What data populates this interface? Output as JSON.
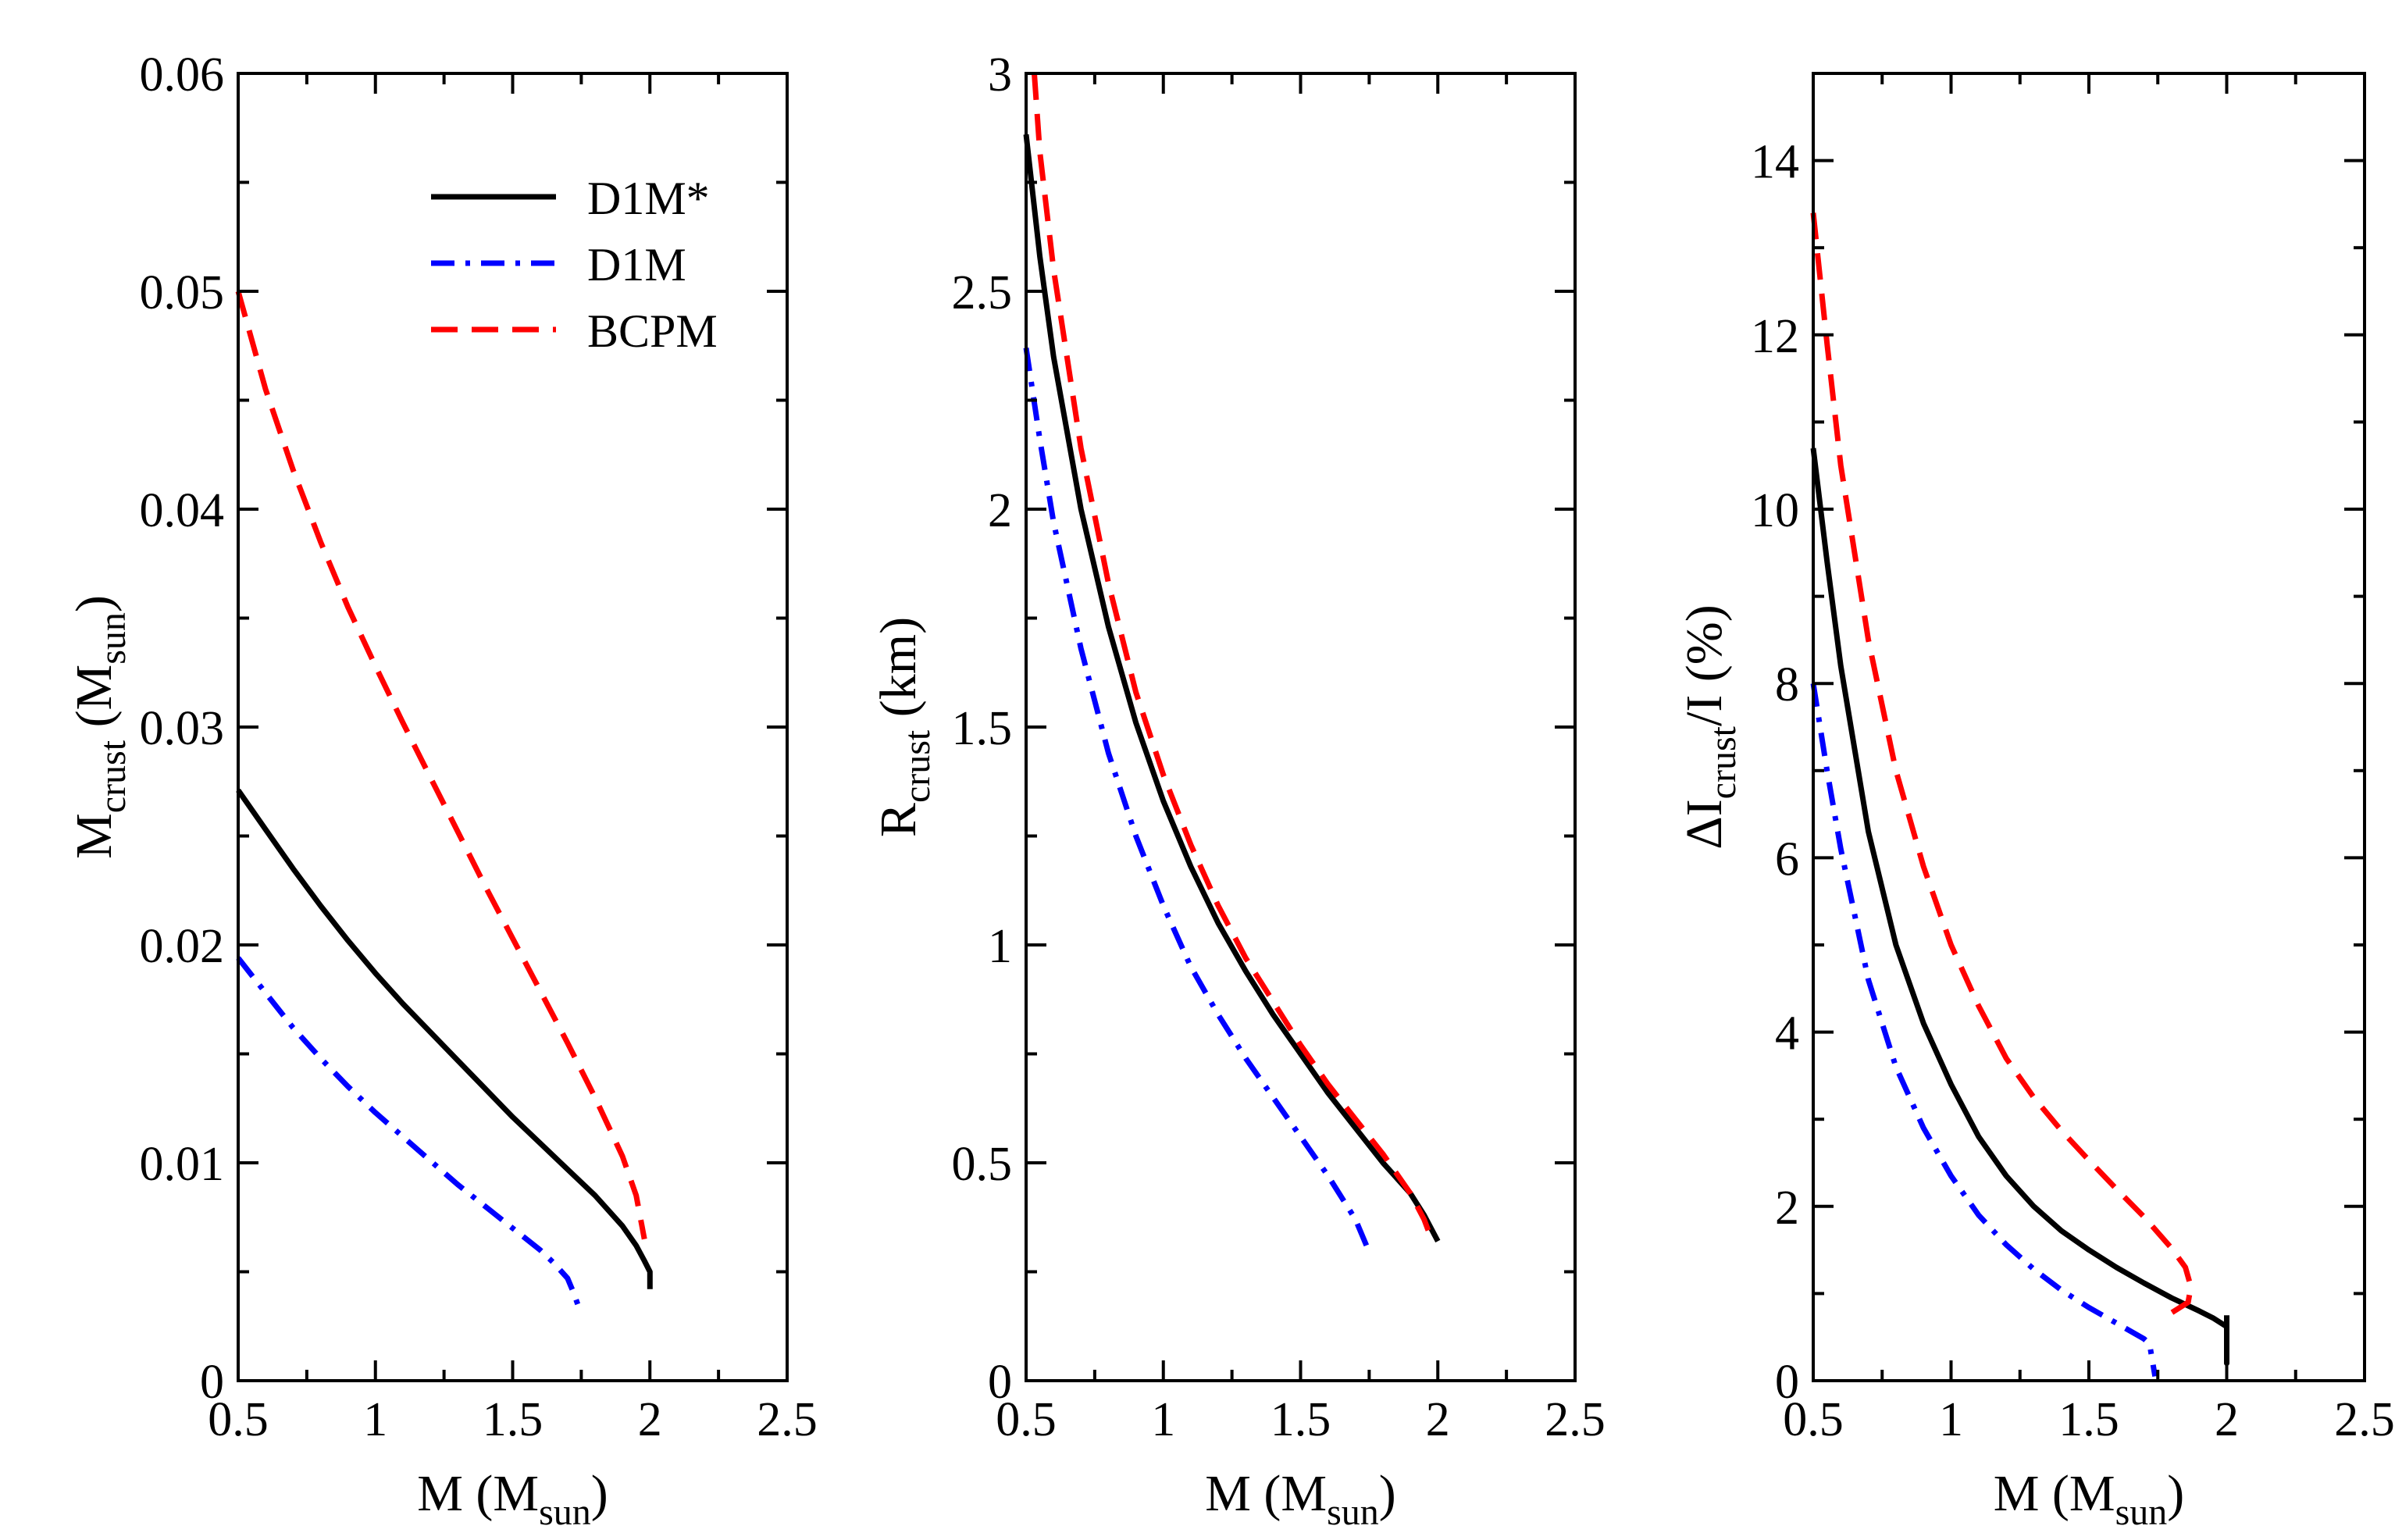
{
  "chart_data": [
    {
      "type": "line",
      "id": "mcrust",
      "xlabel": "M (M",
      "xlabel_sub": "sun",
      "xlabel_end": ")",
      "ylabel": "M",
      "ylabel_sub": "crust",
      "ylabel_rest": " (M",
      "ylabel_sub2": "sun",
      "ylabel_end": ")",
      "xlim": [
        0.5,
        2.5
      ],
      "ylim": [
        0,
        0.06
      ],
      "xticks": [
        0.5,
        1,
        1.5,
        2,
        2.5
      ],
      "xtick_labels": [
        "0.5",
        "1",
        "1.5",
        "2",
        "2.5"
      ],
      "yticks": [
        0,
        0.01,
        0.02,
        0.03,
        0.04,
        0.05,
        0.06
      ],
      "ytick_labels": [
        "0",
        "0.01",
        "0.02",
        "0.03",
        "0.04",
        "0.05",
        "0.06"
      ],
      "legend": {
        "placement": "top-right",
        "entries": [
          "D1M*",
          "D1M",
          "BCPM"
        ]
      },
      "series": [
        {
          "name": "D1M*",
          "style": "solid",
          "color": "#000000",
          "x": [
            0.5,
            0.6,
            0.7,
            0.8,
            0.9,
            1.0,
            1.1,
            1.2,
            1.3,
            1.4,
            1.5,
            1.6,
            1.7,
            1.8,
            1.9,
            1.95,
            1.98,
            2.0,
            2.0
          ],
          "y": [
            0.0271,
            0.0253,
            0.0235,
            0.0218,
            0.0202,
            0.0187,
            0.0173,
            0.016,
            0.0147,
            0.0134,
            0.0121,
            0.0109,
            0.0097,
            0.0085,
            0.0071,
            0.0062,
            0.0055,
            0.005,
            0.0042
          ]
        },
        {
          "name": "D1M",
          "style": "dashdot",
          "color": "#0000ff",
          "x": [
            0.5,
            0.6,
            0.7,
            0.8,
            0.9,
            1.0,
            1.1,
            1.2,
            1.3,
            1.4,
            1.5,
            1.6,
            1.65,
            1.7,
            1.72,
            1.74
          ],
          "y": [
            0.0194,
            0.0178,
            0.0162,
            0.0148,
            0.0135,
            0.0123,
            0.0112,
            0.0101,
            0.009,
            0.008,
            0.007,
            0.006,
            0.0054,
            0.0047,
            0.0041,
            0.0034
          ]
        },
        {
          "name": "BCPM",
          "style": "dashed",
          "color": "#ff0000",
          "x": [
            0.5,
            0.6,
            0.7,
            0.8,
            0.9,
            1.0,
            1.1,
            1.2,
            1.3,
            1.4,
            1.5,
            1.6,
            1.7,
            1.8,
            1.9,
            1.95,
            1.98
          ],
          "y": [
            0.05,
            0.0455,
            0.0418,
            0.0385,
            0.0355,
            0.0328,
            0.0302,
            0.0277,
            0.0252,
            0.0227,
            0.0203,
            0.0179,
            0.0155,
            0.013,
            0.0103,
            0.0085,
            0.0065
          ]
        }
      ]
    },
    {
      "type": "line",
      "id": "rcrust",
      "xlabel": "M (M",
      "xlabel_sub": "sun",
      "xlabel_end": ")",
      "ylabel": "R",
      "ylabel_sub": "crust",
      "ylabel_rest": " (km)",
      "xlim": [
        0.5,
        2.5
      ],
      "ylim": [
        0,
        3
      ],
      "xticks": [
        0.5,
        1,
        1.5,
        2,
        2.5
      ],
      "xtick_labels": [
        "0.5",
        "1",
        "1.5",
        "2",
        "2.5"
      ],
      "yticks": [
        0,
        0.5,
        1,
        1.5,
        2,
        2.5,
        3
      ],
      "ytick_labels": [
        "0",
        "0.5",
        "1",
        "1.5",
        "2",
        "2.5",
        "3"
      ],
      "series": [
        {
          "name": "D1M*",
          "style": "solid",
          "color": "#000000",
          "x": [
            0.5,
            0.55,
            0.6,
            0.7,
            0.8,
            0.9,
            1.0,
            1.1,
            1.2,
            1.3,
            1.4,
            1.5,
            1.6,
            1.7,
            1.8,
            1.9,
            1.95,
            2.0
          ],
          "y": [
            2.86,
            2.58,
            2.35,
            2.0,
            1.73,
            1.51,
            1.33,
            1.18,
            1.05,
            0.94,
            0.84,
            0.75,
            0.66,
            0.58,
            0.5,
            0.43,
            0.38,
            0.32
          ]
        },
        {
          "name": "D1M",
          "style": "dashdot",
          "color": "#0000ff",
          "x": [
            0.5,
            0.55,
            0.6,
            0.7,
            0.8,
            0.9,
            1.0,
            1.1,
            1.2,
            1.3,
            1.4,
            1.5,
            1.6,
            1.7,
            1.74
          ],
          "y": [
            2.37,
            2.16,
            1.97,
            1.68,
            1.44,
            1.25,
            1.09,
            0.95,
            0.84,
            0.74,
            0.65,
            0.56,
            0.47,
            0.37,
            0.31
          ]
        },
        {
          "name": "BCPM",
          "style": "dashed",
          "color": "#ff0000",
          "x": [
            0.53,
            0.55,
            0.6,
            0.7,
            0.8,
            0.9,
            1.0,
            1.1,
            1.2,
            1.3,
            1.4,
            1.5,
            1.6,
            1.7,
            1.8,
            1.9,
            1.95,
            1.98
          ],
          "y": [
            3.0,
            2.82,
            2.55,
            2.14,
            1.83,
            1.58,
            1.39,
            1.23,
            1.09,
            0.97,
            0.87,
            0.77,
            0.68,
            0.6,
            0.52,
            0.43,
            0.37,
            0.32
          ]
        }
      ]
    },
    {
      "type": "line",
      "id": "icrust",
      "xlabel": "M (M",
      "xlabel_sub": "sun",
      "xlabel_end": ")",
      "ylabel": "ΔI",
      "ylabel_sub": "crust",
      "ylabel_rest": "/I (%)",
      "xlim": [
        0.5,
        2.5
      ],
      "ylim": [
        0,
        15
      ],
      "xticks": [
        0.5,
        1,
        1.5,
        2,
        2.5
      ],
      "xtick_labels": [
        "0.5",
        "1",
        "1.5",
        "2",
        "2.5"
      ],
      "yticks": [
        0,
        2,
        4,
        6,
        8,
        10,
        12,
        14
      ],
      "ytick_labels": [
        "0",
        "2",
        "4",
        "6",
        "8",
        "10",
        "12",
        "14"
      ],
      "series": [
        {
          "name": "D1M*",
          "style": "solid",
          "color": "#000000",
          "x": [
            0.5,
            0.55,
            0.6,
            0.7,
            0.8,
            0.9,
            1.0,
            1.1,
            1.2,
            1.3,
            1.4,
            1.5,
            1.6,
            1.7,
            1.8,
            1.9,
            1.95,
            2.0,
            2.0,
            2.0
          ],
          "y": [
            10.7,
            9.4,
            8.2,
            6.3,
            5.0,
            4.1,
            3.4,
            2.8,
            2.35,
            2.0,
            1.72,
            1.5,
            1.3,
            1.12,
            0.95,
            0.8,
            0.72,
            0.62,
            0.2,
            0.75
          ]
        },
        {
          "name": "D1M",
          "style": "dashdot",
          "color": "#0000ff",
          "x": [
            0.5,
            0.55,
            0.6,
            0.7,
            0.8,
            0.9,
            1.0,
            1.1,
            1.2,
            1.3,
            1.4,
            1.5,
            1.6,
            1.7,
            1.72,
            1.74
          ],
          "y": [
            8.0,
            7.0,
            6.1,
            4.6,
            3.6,
            2.9,
            2.35,
            1.9,
            1.56,
            1.28,
            1.04,
            0.84,
            0.66,
            0.48,
            0.42,
            0.05
          ]
        },
        {
          "name": "BCPM",
          "style": "dashed",
          "color": "#ff0000",
          "x": [
            0.5,
            0.55,
            0.6,
            0.7,
            0.8,
            0.9,
            1.0,
            1.1,
            1.2,
            1.3,
            1.4,
            1.5,
            1.6,
            1.7,
            1.8,
            1.85,
            1.87,
            1.86,
            1.8
          ],
          "y": [
            13.4,
            11.9,
            10.5,
            8.5,
            7.0,
            5.9,
            5.0,
            4.3,
            3.7,
            3.25,
            2.87,
            2.53,
            2.2,
            1.88,
            1.52,
            1.3,
            1.08,
            0.9,
            0.78
          ]
        }
      ]
    }
  ]
}
